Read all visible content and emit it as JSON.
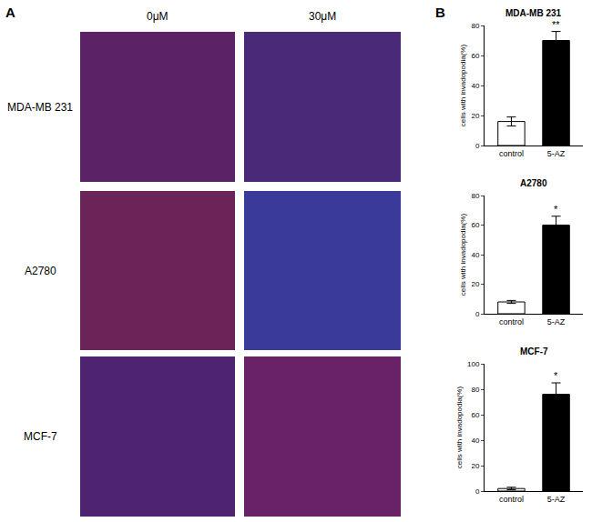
{
  "figure": {
    "panel_labels": [
      "A",
      "B"
    ],
    "column_labels": [
      "0μM",
      "30μM"
    ],
    "row_labels": [
      "MDA-MB 231",
      "A2780",
      "MCF-7"
    ]
  },
  "chart_data": [
    {
      "type": "bar",
      "title": "MDA-MB 231",
      "y_label": "cells with invadopodia(%)",
      "categories": [
        "control",
        "5-AZ"
      ],
      "values": [
        16,
        70
      ],
      "errors": [
        3,
        6
      ],
      "colors": [
        "#ffffff",
        "#000000"
      ],
      "ylim": [
        0,
        80
      ],
      "yticks": [
        0,
        20,
        40,
        60,
        80
      ],
      "grid": false,
      "annotations": [
        {
          "category": "5-AZ",
          "text": "**"
        }
      ]
    },
    {
      "type": "bar",
      "title": "A2780",
      "y_label": "cells with invadopodia(%)",
      "categories": [
        "control",
        "5-AZ"
      ],
      "values": [
        8,
        60
      ],
      "errors": [
        1,
        6
      ],
      "colors": [
        "#ffffff",
        "#000000"
      ],
      "ylim": [
        0,
        80
      ],
      "yticks": [
        0,
        20,
        40,
        60,
        80
      ],
      "grid": false,
      "annotations": [
        {
          "category": "5-AZ",
          "text": "*"
        }
      ]
    },
    {
      "type": "bar",
      "title": "MCF-7",
      "y_label": "cells with invadopodia(%)",
      "categories": [
        "control",
        "5-AZ"
      ],
      "values": [
        2,
        76
      ],
      "errors": [
        1,
        9
      ],
      "colors": [
        "#ffffff",
        "#000000"
      ],
      "ylim": [
        0,
        100
      ],
      "yticks": [
        0,
        20,
        40,
        60,
        80,
        100
      ],
      "grid": false,
      "annotations": [
        {
          "category": "5-AZ",
          "text": "*"
        }
      ]
    }
  ]
}
